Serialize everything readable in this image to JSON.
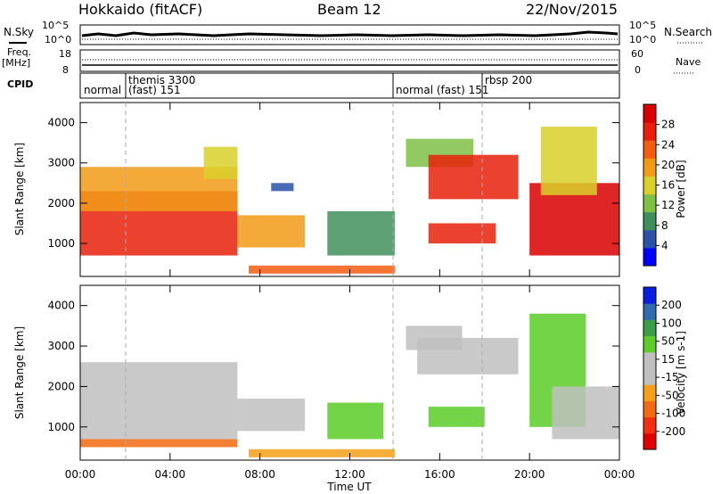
{
  "header": {
    "title": "Hokkaido (fitACF)",
    "beam": "Beam 12",
    "date": "22/Nov/2015"
  },
  "side_labels": {
    "nsky": "N.Sky",
    "nsearch": "N.Search",
    "freq": "Freq.",
    "freq_unit": "[MHz]",
    "nave": "Nave",
    "cpid": "CPID"
  },
  "noise_axis": {
    "left_ticks": [
      "10^5",
      "10^0"
    ],
    "right_ticks": [
      "10^5",
      "10^0"
    ]
  },
  "freq_axis": {
    "left_ticks": [
      "18",
      "8"
    ],
    "right_ticks": [
      "60",
      "0"
    ]
  },
  "cpid_labels": [
    "normal",
    "themis 3300",
    "(fast) 151",
    "normal (fast) 151",
    "rbsp 200"
  ],
  "colors": {
    "power_scale": [
      "#0000ff",
      "#2a52a8",
      "#3f8f5a",
      "#7fc047",
      "#d9d02a",
      "#f29b16",
      "#f25d10",
      "#e8200a",
      "#d90000"
    ],
    "velocity_scale": [
      "#e00000",
      "#f03010",
      "#f26a12",
      "#f5a018",
      "#bfbfbf",
      "#bfbfbf",
      "#5ccc28",
      "#3a9e4a",
      "#2f6cae",
      "#0a1ee0"
    ]
  },
  "chart_data": [
    {
      "type": "heatmap",
      "name_in_image": "Power",
      "colorbar_label": "Power [dB]",
      "colorbar_ticks": [
        "28",
        "24",
        "20",
        "16",
        "12",
        "8",
        "4"
      ],
      "ylabel": "Slant Range [km]",
      "yticks": [
        "4000",
        "3000",
        "2000",
        "1000"
      ],
      "ylim": [
        180,
        4500
      ],
      "xlim": [
        "00:00",
        "24:00"
      ],
      "xticks": [
        "00:00",
        "04:00",
        "08:00",
        "12:00",
        "16:00",
        "20:00",
        "00:00"
      ],
      "regions": [
        {
          "t0": 0.0,
          "t1": 7.0,
          "r0": 700,
          "r1": 2300,
          "level": 7
        },
        {
          "t0": 0.0,
          "t1": 7.0,
          "r0": 1800,
          "r1": 2900,
          "level": 5
        },
        {
          "t0": 5.5,
          "t1": 7.0,
          "r0": 2600,
          "r1": 3400,
          "level": 4
        },
        {
          "t0": 7.0,
          "t1": 10.0,
          "r0": 900,
          "r1": 1700,
          "level": 5
        },
        {
          "t0": 8.5,
          "t1": 9.5,
          "r0": 2300,
          "r1": 2500,
          "level": 1
        },
        {
          "t0": 11.0,
          "t1": 14.0,
          "r0": 700,
          "r1": 1800,
          "level": 2
        },
        {
          "t0": 7.5,
          "t1": 14.0,
          "r0": 250,
          "r1": 450,
          "level": 6
        },
        {
          "t0": 14.5,
          "t1": 17.5,
          "r0": 2900,
          "r1": 3600,
          "level": 3
        },
        {
          "t0": 15.5,
          "t1": 19.5,
          "r0": 2100,
          "r1": 3200,
          "level": 7
        },
        {
          "t0": 15.5,
          "t1": 18.5,
          "r0": 1000,
          "r1": 1500,
          "level": 7
        },
        {
          "t0": 20.0,
          "t1": 24.0,
          "r0": 700,
          "r1": 2500,
          "level": 8
        },
        {
          "t0": 20.5,
          "t1": 23.0,
          "r0": 2200,
          "r1": 3900,
          "level": 4
        }
      ]
    },
    {
      "type": "heatmap",
      "name_in_image": "Velocity",
      "colorbar_label": "Velocity [m s-1]",
      "colorbar_ticks": [
        "200",
        "100",
        "50",
        "15",
        "-15",
        "-50",
        "-100",
        "-200"
      ],
      "ylabel": "Slant Range [km]",
      "yticks": [
        "4000",
        "3000",
        "2000",
        "1000"
      ],
      "ylim": [
        180,
        4500
      ],
      "xlabel": "Time UT",
      "xlim": [
        "00:00",
        "24:00"
      ],
      "xticks": [
        "00:00",
        "04:00",
        "08:00",
        "12:00",
        "16:00",
        "20:00",
        "00:00"
      ],
      "regions": [
        {
          "t0": 0.0,
          "t1": 7.0,
          "r0": 700,
          "r1": 2600,
          "level": 4
        },
        {
          "t0": 7.0,
          "t1": 10.0,
          "r0": 900,
          "r1": 1700,
          "level": 4
        },
        {
          "t0": 7.5,
          "t1": 14.0,
          "r0": 250,
          "r1": 450,
          "level": 3
        },
        {
          "t0": 0.0,
          "t1": 7.0,
          "r0": 500,
          "r1": 700,
          "level": 2
        },
        {
          "t0": 11.0,
          "t1": 13.5,
          "r0": 700,
          "r1": 1600,
          "level": 6
        },
        {
          "t0": 14.5,
          "t1": 17.0,
          "r0": 2900,
          "r1": 3500,
          "level": 4
        },
        {
          "t0": 15.0,
          "t1": 19.5,
          "r0": 2300,
          "r1": 3200,
          "level": 4
        },
        {
          "t0": 15.5,
          "t1": 18.0,
          "r0": 1000,
          "r1": 1500,
          "level": 6
        },
        {
          "t0": 20.0,
          "t1": 22.5,
          "r0": 1000,
          "r1": 3800,
          "level": 6
        },
        {
          "t0": 21.0,
          "t1": 24.0,
          "r0": 700,
          "r1": 2000,
          "level": 4
        }
      ]
    }
  ]
}
